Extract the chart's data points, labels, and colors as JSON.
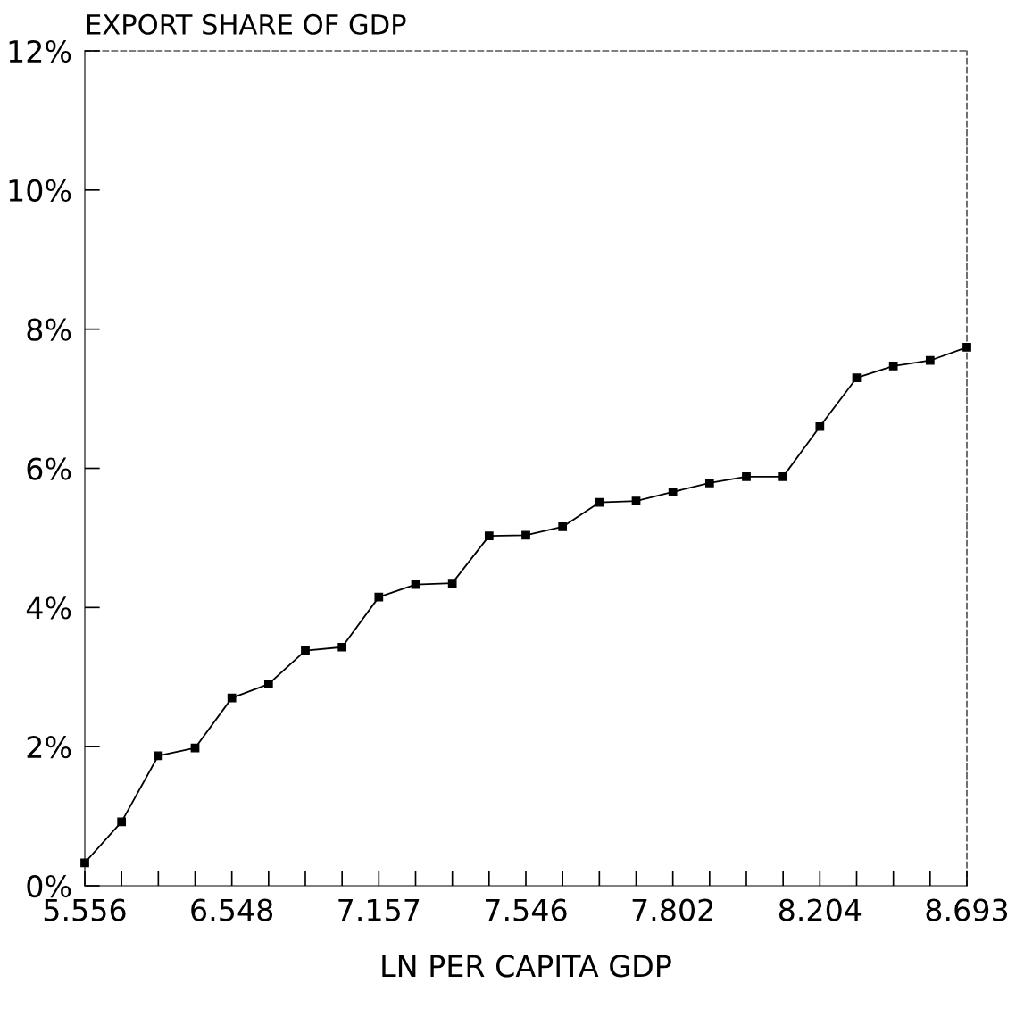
{
  "chart_data": {
    "type": "line",
    "title": "EXPORT SHARE OF GDP",
    "xlabel": "LN PER CAPITA GDP",
    "categories": [
      "5.556",
      null,
      null,
      null,
      "6.548",
      null,
      null,
      null,
      "7.157",
      null,
      null,
      null,
      "7.546",
      null,
      null,
      null,
      "7.802",
      null,
      null,
      null,
      "8.204",
      null,
      null,
      null,
      "8.693"
    ],
    "series": [
      {
        "color": "#000000",
        "values": [
          0.33,
          0.92,
          1.87,
          1.98,
          2.7,
          2.9,
          3.38,
          3.43,
          4.15,
          4.33,
          4.35,
          5.03,
          5.04,
          5.16,
          5.51,
          5.53,
          5.66,
          5.79,
          5.88,
          5.88,
          6.6,
          7.3,
          7.47,
          7.55,
          7.74
        ]
      }
    ],
    "ylim": [
      0,
      12
    ],
    "yticks": [
      {
        "value": 0,
        "label": "0%"
      },
      {
        "value": 2,
        "label": "2%"
      },
      {
        "value": 4,
        "label": "4%"
      },
      {
        "value": 6,
        "label": "6%"
      },
      {
        "value": 8,
        "label": "8%"
      },
      {
        "value": 10,
        "label": "10%"
      },
      {
        "value": 12,
        "label": "12%"
      }
    ],
    "marker": "square",
    "line_style": "solid",
    "grid": false,
    "legend": false
  }
}
